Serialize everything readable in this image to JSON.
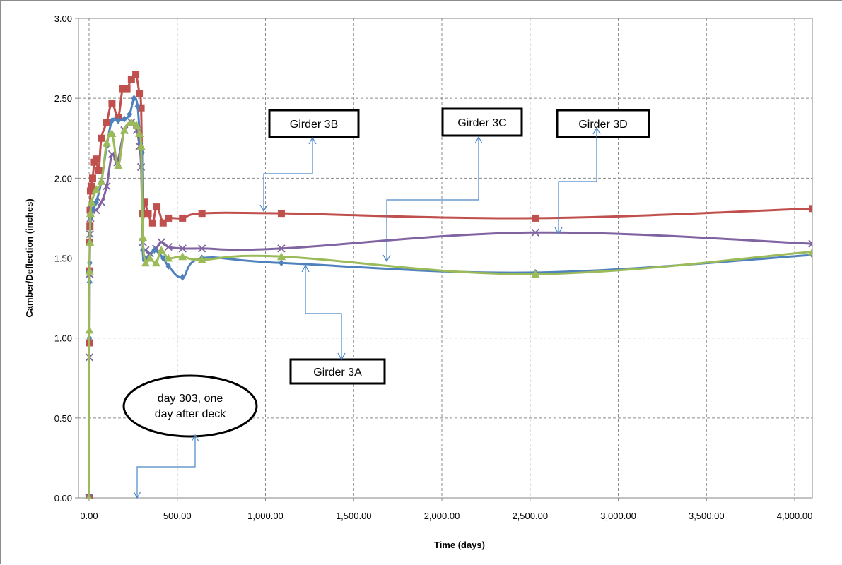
{
  "chart_data": {
    "type": "line",
    "title": "",
    "xlabel": "Time (days)",
    "ylabel": "Camber/Deflection (inches)",
    "xlim": [
      -60,
      4100
    ],
    "ylim": [
      0,
      3.0
    ],
    "x_ticks": [
      0,
      500,
      1000,
      1500,
      2000,
      2500,
      3000,
      3500,
      4000
    ],
    "x_tick_labels": [
      "0.00",
      "500.00",
      "1,000.00",
      "1,500.00",
      "2,000.00",
      "2,500.00",
      "3,000.00",
      "3,500.00",
      "4,000.00"
    ],
    "y_ticks": [
      0,
      0.5,
      1.0,
      1.5,
      2.0,
      2.5,
      3.0
    ],
    "y_tick_labels": [
      "0.00",
      "0.50",
      "1.00",
      "1.50",
      "2.00",
      "2.50",
      "3.00"
    ],
    "grid": true,
    "legend": "none",
    "series": [
      {
        "color": "#c0504d",
        "marker": "square",
        "points": [
          [
            0,
            0
          ],
          [
            2,
            0.97
          ],
          [
            3,
            1.42
          ],
          [
            4,
            1.6
          ],
          [
            5,
            1.7
          ],
          [
            6,
            1.8
          ],
          [
            8,
            1.92
          ],
          [
            12,
            1.95
          ],
          [
            20,
            2.0
          ],
          [
            30,
            2.1
          ],
          [
            40,
            2.12
          ],
          [
            55,
            2.05
          ],
          [
            70,
            2.25
          ],
          [
            100,
            2.35
          ],
          [
            130,
            2.47
          ],
          [
            165,
            2.38
          ],
          [
            190,
            2.56
          ],
          [
            215,
            2.56
          ],
          [
            240,
            2.62
          ],
          [
            265,
            2.65
          ],
          [
            285,
            2.53
          ],
          [
            295,
            2.44
          ],
          [
            305,
            1.78
          ],
          [
            315,
            1.85
          ],
          [
            335,
            1.78
          ],
          [
            360,
            1.72
          ],
          [
            385,
            1.82
          ],
          [
            420,
            1.72
          ],
          [
            450,
            1.75
          ],
          [
            530,
            1.75
          ],
          [
            640,
            1.78
          ],
          [
            1090,
            1.78
          ],
          [
            2530,
            1.75
          ],
          [
            4100,
            1.81
          ]
        ]
      },
      {
        "color": "#8064a2",
        "marker": "x",
        "points": [
          [
            0,
            0
          ],
          [
            2,
            0.88
          ],
          [
            3,
            1.4
          ],
          [
            5,
            1.65
          ],
          [
            8,
            1.75
          ],
          [
            15,
            1.8
          ],
          [
            40,
            1.8
          ],
          [
            70,
            1.85
          ],
          [
            100,
            1.95
          ],
          [
            130,
            2.15
          ],
          [
            160,
            2.1
          ],
          [
            200,
            2.3
          ],
          [
            240,
            2.35
          ],
          [
            270,
            2.3
          ],
          [
            285,
            2.2
          ],
          [
            295,
            2.07
          ],
          [
            305,
            1.6
          ],
          [
            320,
            1.55
          ],
          [
            345,
            1.53
          ],
          [
            380,
            1.56
          ],
          [
            410,
            1.6
          ],
          [
            450,
            1.57
          ],
          [
            530,
            1.56
          ],
          [
            640,
            1.56
          ],
          [
            1090,
            1.56
          ],
          [
            2530,
            1.66
          ],
          [
            4100,
            1.59
          ]
        ]
      },
      {
        "color": "#4f81bd",
        "marker": "diamond",
        "points": [
          [
            0,
            0
          ],
          [
            2,
            1.0
          ],
          [
            3,
            1.35
          ],
          [
            4,
            1.47
          ],
          [
            6,
            1.6
          ],
          [
            10,
            1.75
          ],
          [
            20,
            1.8
          ],
          [
            40,
            1.85
          ],
          [
            70,
            1.98
          ],
          [
            100,
            2.2
          ],
          [
            130,
            2.36
          ],
          [
            165,
            2.36
          ],
          [
            200,
            2.37
          ],
          [
            230,
            2.4
          ],
          [
            255,
            2.5
          ],
          [
            275,
            2.45
          ],
          [
            290,
            2.22
          ],
          [
            300,
            2.16
          ],
          [
            305,
            1.55
          ],
          [
            315,
            1.5
          ],
          [
            340,
            1.5
          ],
          [
            370,
            1.55
          ],
          [
            420,
            1.5
          ],
          [
            450,
            1.45
          ],
          [
            530,
            1.38
          ],
          [
            640,
            1.5
          ],
          [
            1090,
            1.47
          ],
          [
            2530,
            1.41
          ],
          [
            4100,
            1.52
          ]
        ]
      },
      {
        "color": "#9bbb59",
        "marker": "triangle",
        "points": [
          [
            0,
            0
          ],
          [
            2,
            1.05
          ],
          [
            3,
            1.42
          ],
          [
            5,
            1.6
          ],
          [
            8,
            1.78
          ],
          [
            15,
            1.85
          ],
          [
            40,
            1.93
          ],
          [
            70,
            1.98
          ],
          [
            100,
            2.22
          ],
          [
            130,
            2.28
          ],
          [
            165,
            2.08
          ],
          [
            200,
            2.3
          ],
          [
            240,
            2.35
          ],
          [
            270,
            2.33
          ],
          [
            285,
            2.28
          ],
          [
            295,
            2.2
          ],
          [
            305,
            1.63
          ],
          [
            320,
            1.47
          ],
          [
            345,
            1.5
          ],
          [
            380,
            1.47
          ],
          [
            410,
            1.55
          ],
          [
            450,
            1.5
          ],
          [
            530,
            1.51
          ],
          [
            640,
            1.49
          ],
          [
            1090,
            1.51
          ],
          [
            2530,
            1.4
          ],
          [
            4100,
            1.54
          ]
        ]
      }
    ],
    "annotations": [
      {
        "text": "Girder 3B",
        "color": "#4a86c8"
      },
      {
        "text": "Girder 3C",
        "color": "#4a86c8"
      },
      {
        "text": "Girder 3D",
        "color": "#4a86c8"
      },
      {
        "text": "Girder 3A",
        "color": "#4a86c8"
      },
      {
        "text_line1": "day 303, one",
        "text_line2": "day after deck",
        "color": "#4a86c8"
      }
    ]
  }
}
